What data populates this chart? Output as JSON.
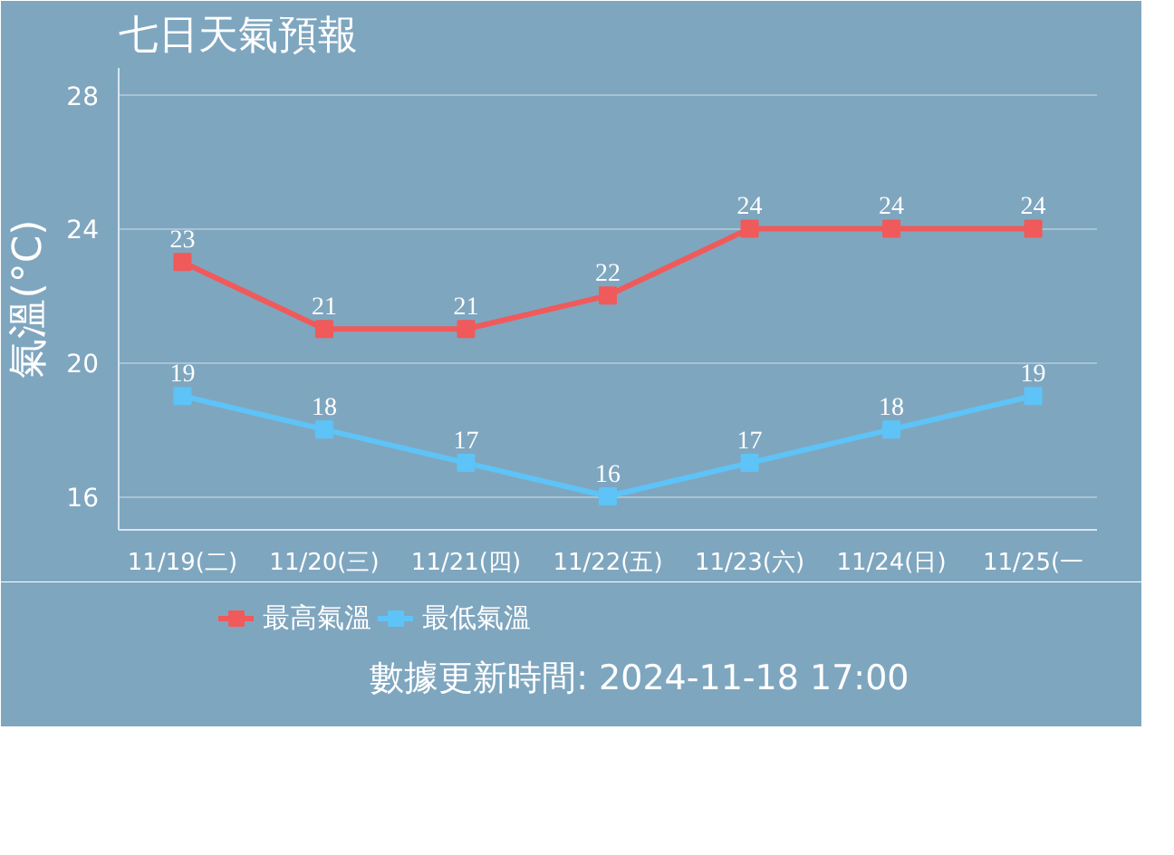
{
  "chart_data": {
    "type": "line",
    "title": "七日天氣預報",
    "ylabel": "氣溫(°C)",
    "categories": [
      "11/19(二)",
      "11/20(三)",
      "11/21(四)",
      "11/22(五)",
      "11/23(六)",
      "11/24(日)",
      "11/25(一"
    ],
    "series": [
      {
        "name": "最高氣溫",
        "color": "#f05a5a",
        "values": [
          23,
          21,
          21,
          22,
          24,
          24,
          24
        ]
      },
      {
        "name": "最低氣溫",
        "color": "#5ec3f7",
        "values": [
          19,
          18,
          17,
          16,
          17,
          18,
          19
        ]
      }
    ],
    "ylim": [
      15,
      28.8
    ],
    "yticks": [
      16,
      20,
      24,
      28
    ],
    "grid": "y",
    "legend": "bottom",
    "marker": "square",
    "data_labels": true,
    "annotations": [
      "數據更新時間: 2024-11-18 17:00"
    ]
  }
}
